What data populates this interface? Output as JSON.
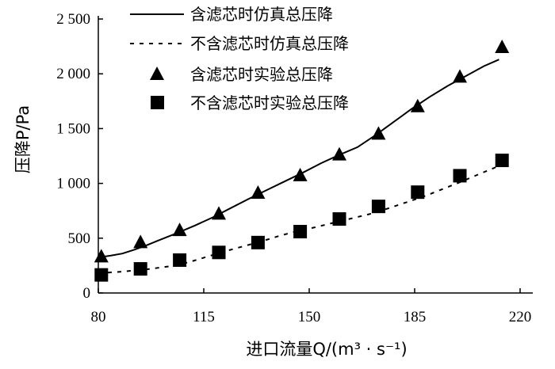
{
  "chart_data": {
    "type": "line",
    "title": "",
    "xlabel": "进口流量Q/(m³ · s⁻¹)",
    "ylabel": "压降P/Pa",
    "xlim": [
      80,
      220
    ],
    "ylim": [
      0,
      2500
    ],
    "x_ticks": [
      80,
      115,
      150,
      185,
      220
    ],
    "x_tick_labels": [
      "80",
      "115",
      "150",
      "185",
      "220"
    ],
    "y_ticks": [
      0,
      500,
      1000,
      1500,
      2000,
      2500
    ],
    "y_tick_labels": [
      "0",
      "500",
      "1 000",
      "1 500",
      "2 000",
      "2 500"
    ],
    "grid": false,
    "legend_position": "top-left",
    "series": [
      {
        "name": "含滤芯时仿真总压降",
        "style": "solid-line",
        "x": [
          80,
          84,
          88,
          92,
          96,
          100,
          106,
          112,
          118,
          124,
          130,
          136,
          142,
          148,
          154,
          160,
          166,
          172,
          178,
          184,
          190,
          196,
          202,
          208,
          213
        ],
        "y": [
          325,
          340,
          360,
          395,
          435,
          480,
          545,
          615,
          690,
          775,
          860,
          940,
          1020,
          1100,
          1185,
          1260,
          1330,
          1440,
          1560,
          1680,
          1790,
          1890,
          1980,
          2070,
          2130
        ]
      },
      {
        "name": "不含滤芯时仿真总压降",
        "style": "dashed-line",
        "x": [
          80,
          88,
          96,
          104,
          110,
          116,
          122,
          128,
          134,
          140,
          146,
          152,
          158,
          164,
          170,
          176,
          182,
          188,
          194,
          200,
          206,
          213
        ],
        "y": [
          180,
          195,
          215,
          245,
          280,
          330,
          380,
          425,
          470,
          520,
          565,
          600,
          640,
          680,
          720,
          770,
          825,
          880,
          945,
          1010,
          1080,
          1160
        ]
      },
      {
        "name": "含滤芯时实验总压降",
        "style": "triangle-marker",
        "x": [
          81,
          94,
          107,
          120,
          133,
          147,
          160,
          173,
          186,
          200,
          214
        ],
        "y": [
          330,
          460,
          570,
          720,
          910,
          1070,
          1260,
          1450,
          1700,
          1970,
          2240
        ]
      },
      {
        "name": "不含滤芯时实验总压降",
        "style": "square-marker",
        "x": [
          81,
          94,
          107,
          120,
          133,
          147,
          160,
          173,
          186,
          200,
          214
        ],
        "y": [
          165,
          220,
          300,
          370,
          460,
          560,
          675,
          790,
          920,
          1070,
          1210
        ]
      }
    ]
  }
}
